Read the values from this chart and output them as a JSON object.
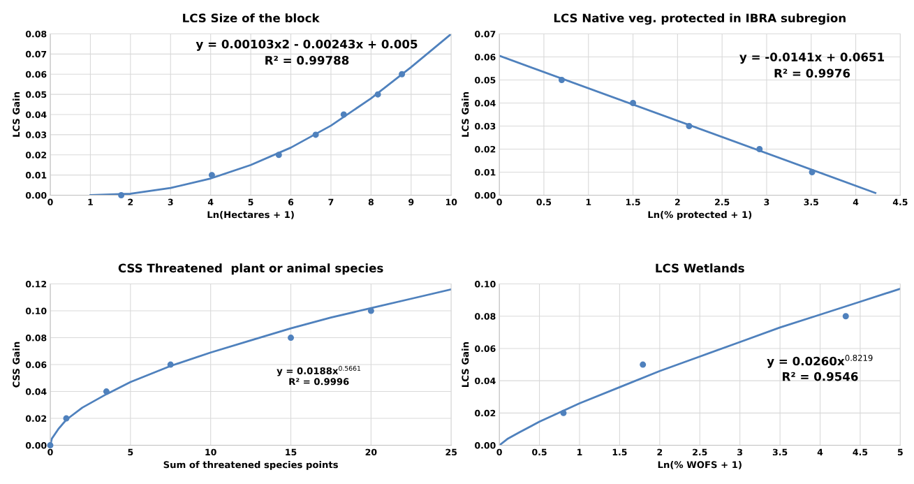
{
  "chart_data": [
    {
      "type": "scatter",
      "title": "LCS Size of the block",
      "xlabel": "Ln(Hectares + 1)",
      "ylabel": "LCS Gain",
      "grid": true,
      "annotations": [
        "y = 0.00103x2 - 0.00243x + 0.005",
        "R² = 0.99788"
      ],
      "xlim": [
        0,
        10
      ],
      "xticks": [
        0,
        1,
        2,
        3,
        4,
        5,
        6,
        7,
        8,
        9,
        10
      ],
      "ylim": [
        0,
        0.08
      ],
      "yticks": [
        {
          "value": 0,
          "label": "0.00"
        },
        {
          "value": 0.01,
          "label": "0.01"
        },
        {
          "value": 0.02,
          "label": "0.02"
        },
        {
          "value": 0.03,
          "label": "0.03"
        },
        {
          "value": 0.04,
          "label": "0.04"
        },
        {
          "value": 0.05,
          "label": "0.05"
        },
        {
          "value": 0.06,
          "label": "0.06"
        },
        {
          "value": 0.07,
          "label": "0.07"
        },
        {
          "value": 0.08,
          "label": "0.08"
        }
      ],
      "series": [
        {
          "color": "#4f81bd",
          "marker": "circle",
          "x": [
            1.77,
            4.03,
            5.7,
            6.62,
            7.32,
            8.17,
            8.77
          ],
          "values": [
            0,
            0.01,
            0.02,
            0.03,
            0.04,
            0.05,
            0.06
          ]
        },
        {
          "type": "line",
          "color": "#4f81bd",
          "marker": "none",
          "x": [
            1,
            2,
            3,
            4,
            5,
            6,
            7,
            8,
            9,
            10
          ],
          "values": [
            0,
            0.0007,
            0.0036,
            0.0083,
            0.015,
            0.0236,
            0.0345,
            0.048,
            0.0635,
            0.08
          ]
        }
      ]
    },
    {
      "type": "scatter",
      "title": "LCS Native veg. protected in IBRA subregion",
      "xlabel": "Ln(% protected + 1)",
      "ylabel": "LCS Gain",
      "grid": true,
      "annotations": [
        "y = -0.0141x + 0.0651",
        "R² = 0.9976"
      ],
      "xlim": [
        0,
        4.5
      ],
      "xticks": [
        0,
        0.5,
        1,
        1.5,
        2,
        2.5,
        3,
        3.5,
        4,
        4.5
      ],
      "ylim": [
        0,
        0.07
      ],
      "yticks": [
        {
          "value": 0,
          "label": "0.00"
        },
        {
          "value": 0.01,
          "label": "0.01"
        },
        {
          "value": 0.02,
          "label": "0.02"
        },
        {
          "value": 0.03,
          "label": "0.03"
        },
        {
          "value": 0.04,
          "label": "0.04"
        },
        {
          "value": 0.05,
          "label": "0.05"
        },
        {
          "value": 0.06,
          "label": "0.06"
        },
        {
          "value": 0.07,
          "label": "0.07"
        }
      ],
      "series": [
        {
          "color": "#4f81bd",
          "marker": "circle",
          "x": [
            0.7,
            1.5,
            2.13,
            2.92,
            3.51
          ],
          "values": [
            0.05,
            0.04,
            0.03,
            0.02,
            0.01
          ]
        },
        {
          "type": "line",
          "color": "#4f81bd",
          "marker": "none",
          "x": [
            0,
            4.22
          ],
          "values": [
            0.0605,
            0.001
          ]
        }
      ]
    },
    {
      "type": "scatter",
      "title": "CSS Threatened  plant or animal species",
      "xlabel": "Sum of threatened species points",
      "ylabel": "CSS Gain",
      "grid": true,
      "annotations": [
        "y = 0.0188x$^{0.5661}$",
        "R² = 0.9996"
      ],
      "xlim": [
        0,
        25
      ],
      "xticks": [
        0,
        5,
        10,
        15,
        20,
        25
      ],
      "ylim": [
        0,
        0.12
      ],
      "yticks": [
        {
          "value": 0,
          "label": "0.00"
        },
        {
          "value": 0.02,
          "label": "0.02"
        },
        {
          "value": 0.04,
          "label": "0.04"
        },
        {
          "value": 0.06,
          "label": "0.06"
        },
        {
          "value": 0.08,
          "label": "0.08"
        },
        {
          "value": 0.1,
          "label": "0.10"
        },
        {
          "value": 0.12,
          "label": "0.12"
        }
      ],
      "series": [
        {
          "color": "#4f81bd",
          "marker": "circle",
          "x": [
            0,
            1,
            3.5,
            7.5,
            15,
            20
          ],
          "values": [
            0,
            0.02,
            0.04,
            0.06,
            0.08,
            0.1
          ]
        },
        {
          "type": "line",
          "color": "#4f81bd",
          "marker": "none",
          "x": [
            0,
            0.1,
            0.5,
            1,
            2,
            3.5,
            5,
            7.5,
            10,
            12.5,
            15,
            17.5,
            20,
            22.5,
            25
          ],
          "values": [
            0,
            0.005,
            0.012,
            0.019,
            0.028,
            0.038,
            0.047,
            0.059,
            0.069,
            0.078,
            0.087,
            0.095,
            0.102,
            0.109,
            0.116
          ]
        }
      ]
    },
    {
      "type": "scatter",
      "title": "LCS Wetlands",
      "xlabel": "Ln(% WOFS + 1)",
      "ylabel": "LCS Gain",
      "grid": true,
      "annotations": [
        "y = 0.0260x$^{0.8219}$",
        "R² = 0.9546"
      ],
      "xlim": [
        0,
        5
      ],
      "xticks": [
        0,
        0.5,
        1,
        1.5,
        2,
        2.5,
        3,
        3.5,
        4,
        4.5,
        5
      ],
      "ylim": [
        0,
        0.1
      ],
      "yticks": [
        {
          "value": 0,
          "label": "0.00"
        },
        {
          "value": 0.02,
          "label": "0.02"
        },
        {
          "value": 0.04,
          "label": "0.04"
        },
        {
          "value": 0.06,
          "label": "0.06"
        },
        {
          "value": 0.08,
          "label": "0.08"
        },
        {
          "value": 0.1,
          "label": "0.10"
        }
      ],
      "series": [
        {
          "color": "#4f81bd",
          "marker": "circle",
          "x": [
            0.8,
            1.79,
            4.32
          ],
          "values": [
            0.02,
            0.05,
            0.08
          ]
        },
        {
          "type": "line",
          "color": "#4f81bd",
          "marker": "none",
          "x": [
            0,
            0.1,
            0.25,
            0.5,
            1,
            1.5,
            2,
            2.5,
            3,
            3.5,
            4,
            4.5,
            5
          ],
          "values": [
            0,
            0.0039,
            0.008,
            0.0146,
            0.026,
            0.036,
            0.046,
            0.055,
            0.064,
            0.073,
            0.081,
            0.089,
            0.097
          ]
        }
      ]
    }
  ]
}
